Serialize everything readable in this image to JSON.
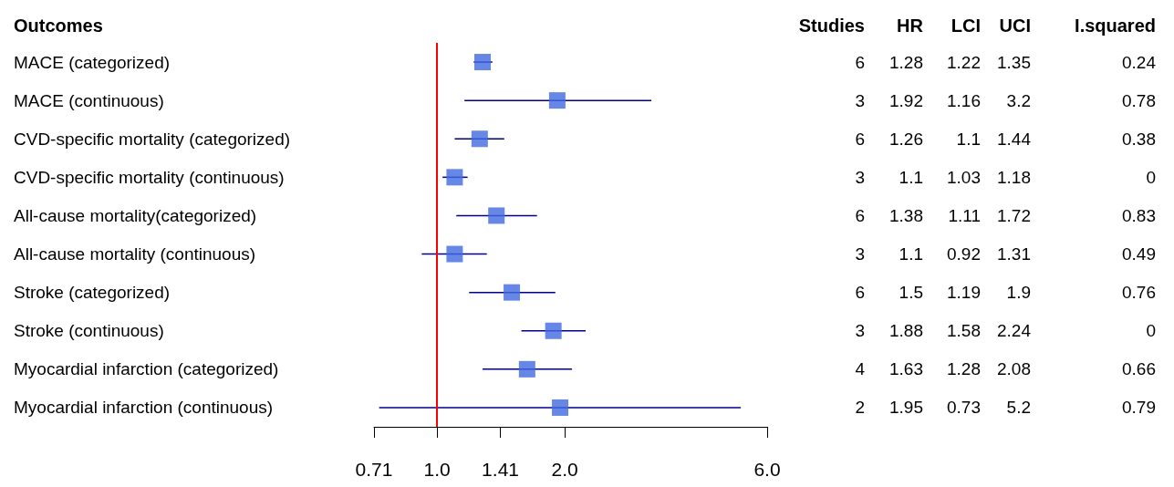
{
  "chart_data": {
    "type": "scatter",
    "orientation": "horizontal",
    "ylabel": "Outcomes",
    "categories": [
      "MACE (categorized)",
      "MACE (continuous)",
      "CVD-specific mortality (categorized)",
      "CVD-specific mortality (continuous)",
      "All-cause mortality(categorized)",
      "All-cause mortality (continuous)",
      "Stroke (categorized)",
      "Stroke (continuous)",
      "Myocardial infarction (categorized)",
      "Myocardial infarction (continuous)"
    ],
    "color": "#4169e1",
    "values": [
      1.28,
      1.92,
      1.26,
      1.1,
      1.38,
      1.1,
      1.5,
      1.88,
      1.63,
      1.95
    ],
    "errors": [
      [
        1.22,
        1.35
      ],
      [
        1.16,
        3.2
      ],
      [
        1.1,
        1.44
      ],
      [
        1.03,
        1.18
      ],
      [
        1.11,
        1.72
      ],
      [
        0.92,
        1.31
      ],
      [
        1.19,
        1.9
      ],
      [
        1.58,
        2.24
      ],
      [
        1.28,
        2.08
      ],
      [
        0.73,
        5.2
      ]
    ],
    "data_labels": true,
    "log": "x",
    "xlim": [
      0.71,
      6
    ],
    "xticks": [
      0.71,
      {
        "value": 1,
        "label": "1.0"
      },
      1.41,
      {
        "value": 2,
        "label": "2.0"
      },
      {
        "value": 6,
        "label": "6.0"
      }
    ],
    "ref_lines": [
      {
        "axis": "x",
        "value": 1,
        "color": "#ff0000"
      }
    ],
    "marker": "square",
    "grid": false,
    "annotations": [
      "Studies",
      "HR",
      "LCI",
      "UCI",
      "I.squared",
      "6",
      "1.22",
      "1.35",
      "0.24",
      "3",
      "1.16",
      "3.2",
      "0.78",
      "6",
      "1.1",
      "1.44",
      "0.38",
      "3",
      "1.03",
      "1.18",
      "0",
      "6",
      "1.11",
      "1.72",
      "0.83",
      "3",
      "0.92",
      "1.31",
      "0.49",
      "6",
      "1.19",
      "1.9",
      "0.76",
      "3",
      "1.58",
      "2.24",
      "0",
      "4",
      "1.28",
      "2.08",
      "0.66",
      "2",
      "0.73",
      "5.2",
      "0.79"
    ]
  }
}
